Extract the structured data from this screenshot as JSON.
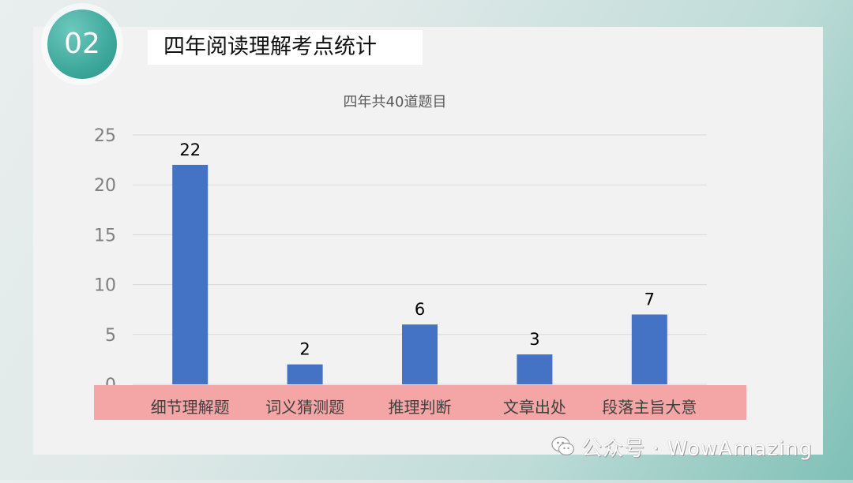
{
  "slide": {
    "number": "02",
    "title": "四年阅读理解考点统计"
  },
  "footer": {
    "text": "公众号 · WowAmazing",
    "icon": "wechat-icon"
  },
  "colors": {
    "bar": "#4472c4",
    "category_band": "#f4a6a6",
    "badge": "#3ea89c",
    "gridline": "#d9d9d9"
  },
  "chart_data": {
    "type": "bar",
    "title": "四年共40道题目",
    "categories": [
      "细节理解题",
      "词义猜测题",
      "推理判断",
      "文章出处",
      "段落主旨大意"
    ],
    "values": [
      22,
      2,
      6,
      3,
      7
    ],
    "data_labels": [
      "22",
      "2",
      "6",
      "3",
      "7"
    ],
    "xlabel": "",
    "ylabel": "",
    "ylim": [
      0,
      25
    ],
    "yticks": [
      0,
      5,
      10,
      15,
      20,
      25
    ],
    "grid": true,
    "legend": "none"
  }
}
